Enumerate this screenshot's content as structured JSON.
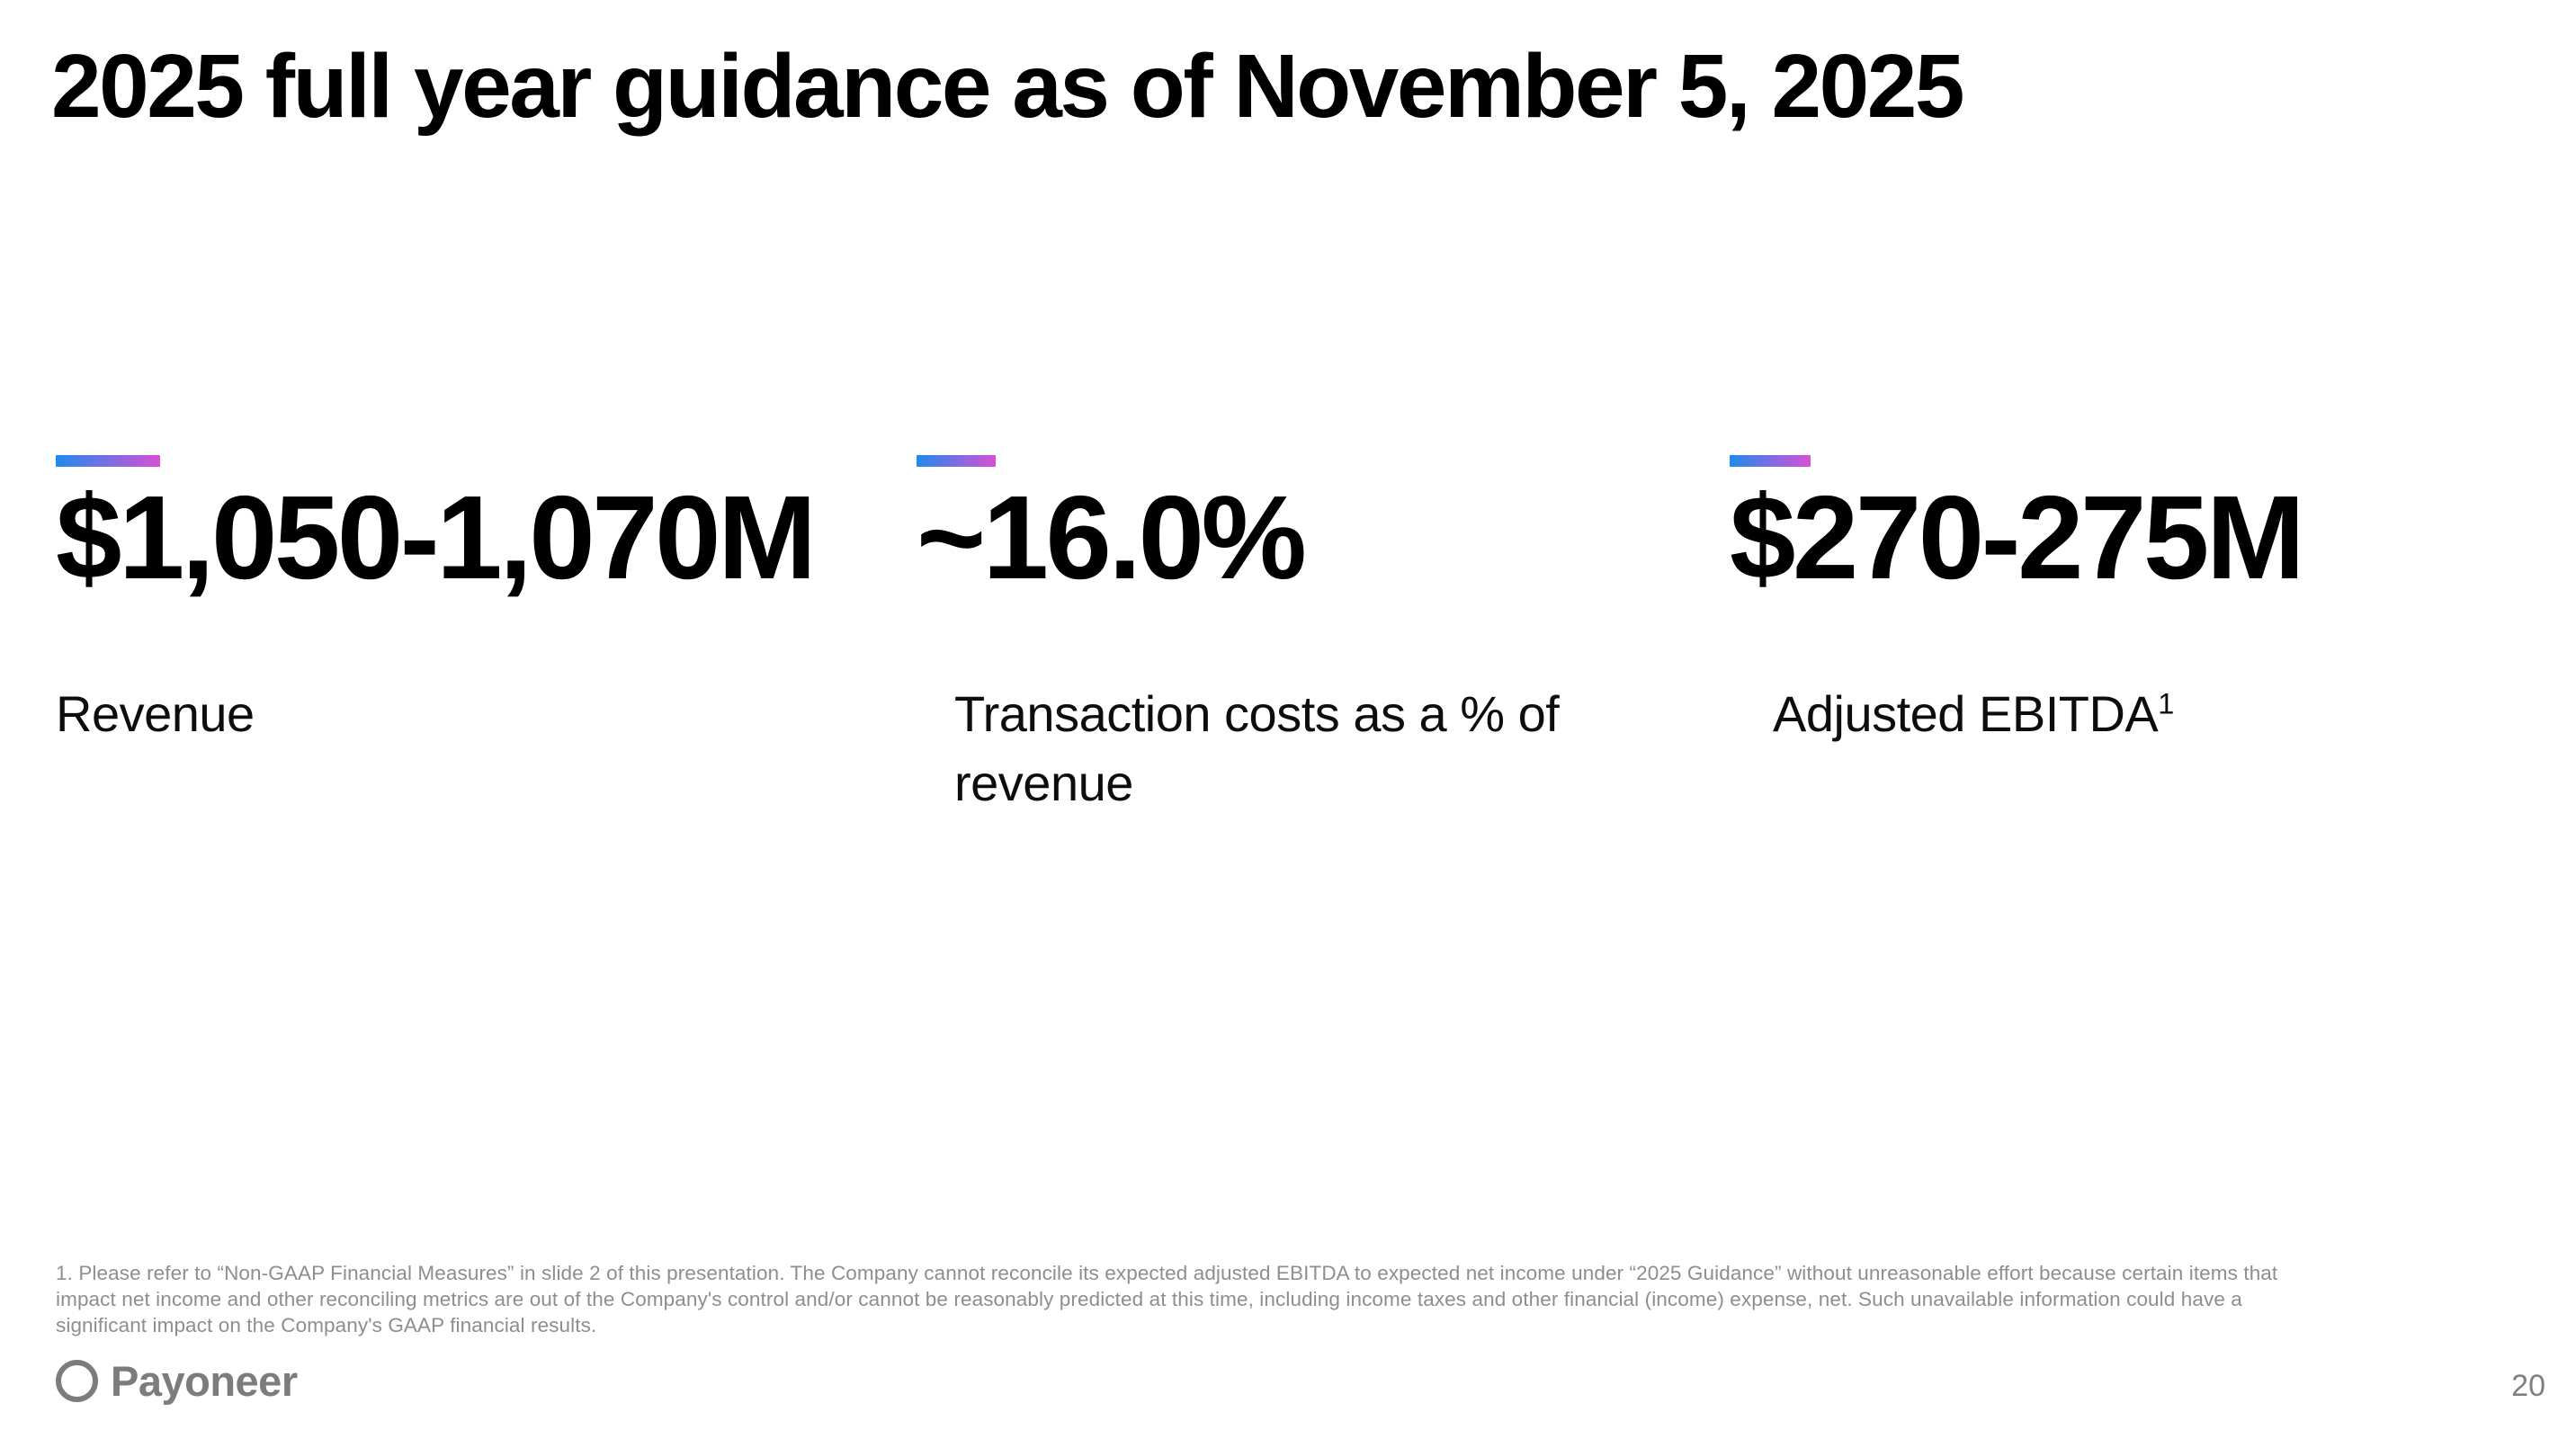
{
  "slide": {
    "title": "2025 full year guidance as of November 5, 2025",
    "page_number": "20"
  },
  "colors": {
    "accent_gradient_from": "#1E8BED",
    "accent_gradient_to": "#D84FD6",
    "text": "#000000",
    "footnote_gray": "#8e8e8e",
    "logo_gray": "#7c7c7c"
  },
  "metrics": [
    {
      "value": "$1,050-1,070M",
      "label": "Revenue",
      "label_sup": ""
    },
    {
      "value": "~16.0%",
      "label": "Transaction costs as a % of revenue",
      "label_sup": ""
    },
    {
      "value": "$270-275M",
      "label": "Adjusted EBITDA",
      "label_sup": "1"
    }
  ],
  "footnote": {
    "lines": [
      "1. Please refer to “Non-GAAP Financial Measures” in slide 2 of this presentation. The Company cannot reconcile its expected adjusted EBITDA to expected net income under “2025 Guidance” without unreasonable effort because certain items that",
      "impact net income and other reconciling metrics are out of the Company's control and/or cannot be reasonably predicted at this time, including income taxes and other financial (income) expense, net. Such unavailable information could have a",
      "significant impact on the Company's GAAP financial results."
    ]
  },
  "logo": {
    "wordmark": "Payoneer"
  }
}
